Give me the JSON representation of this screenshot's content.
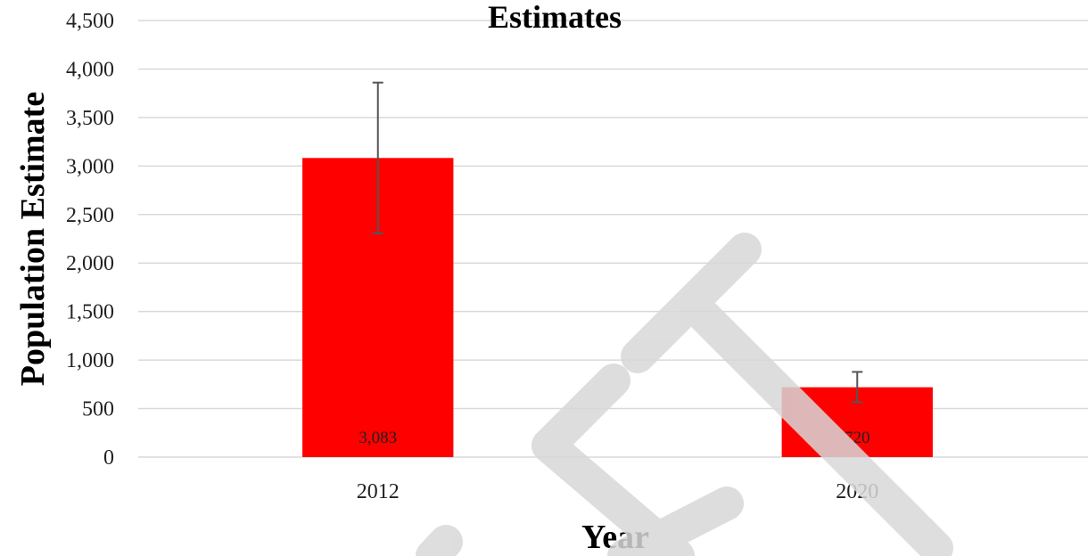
{
  "chart_data": {
    "type": "bar",
    "title": "Estimates",
    "xlabel": "Year",
    "ylabel": "Population Estimate",
    "categories": [
      "2012",
      "2020"
    ],
    "values": [
      3083,
      720
    ],
    "data_labels": [
      "3,083",
      "720"
    ],
    "error_low": [
      2305,
      565
    ],
    "error_high": [
      3860,
      878
    ],
    "ylim": [
      0,
      4500
    ],
    "yticks": [
      0,
      500,
      1000,
      1500,
      2000,
      2500,
      3000,
      3500,
      4000,
      4500
    ],
    "ytick_labels": [
      "0",
      "500",
      "1,000",
      "1,500",
      "2,000",
      "2,500",
      "3,000",
      "3,500",
      "4,000",
      "4,500"
    ],
    "grid": true,
    "bar_color": "#ff0000",
    "error_bar_color": "#555555",
    "gridline_color": "#d9d9d9"
  }
}
